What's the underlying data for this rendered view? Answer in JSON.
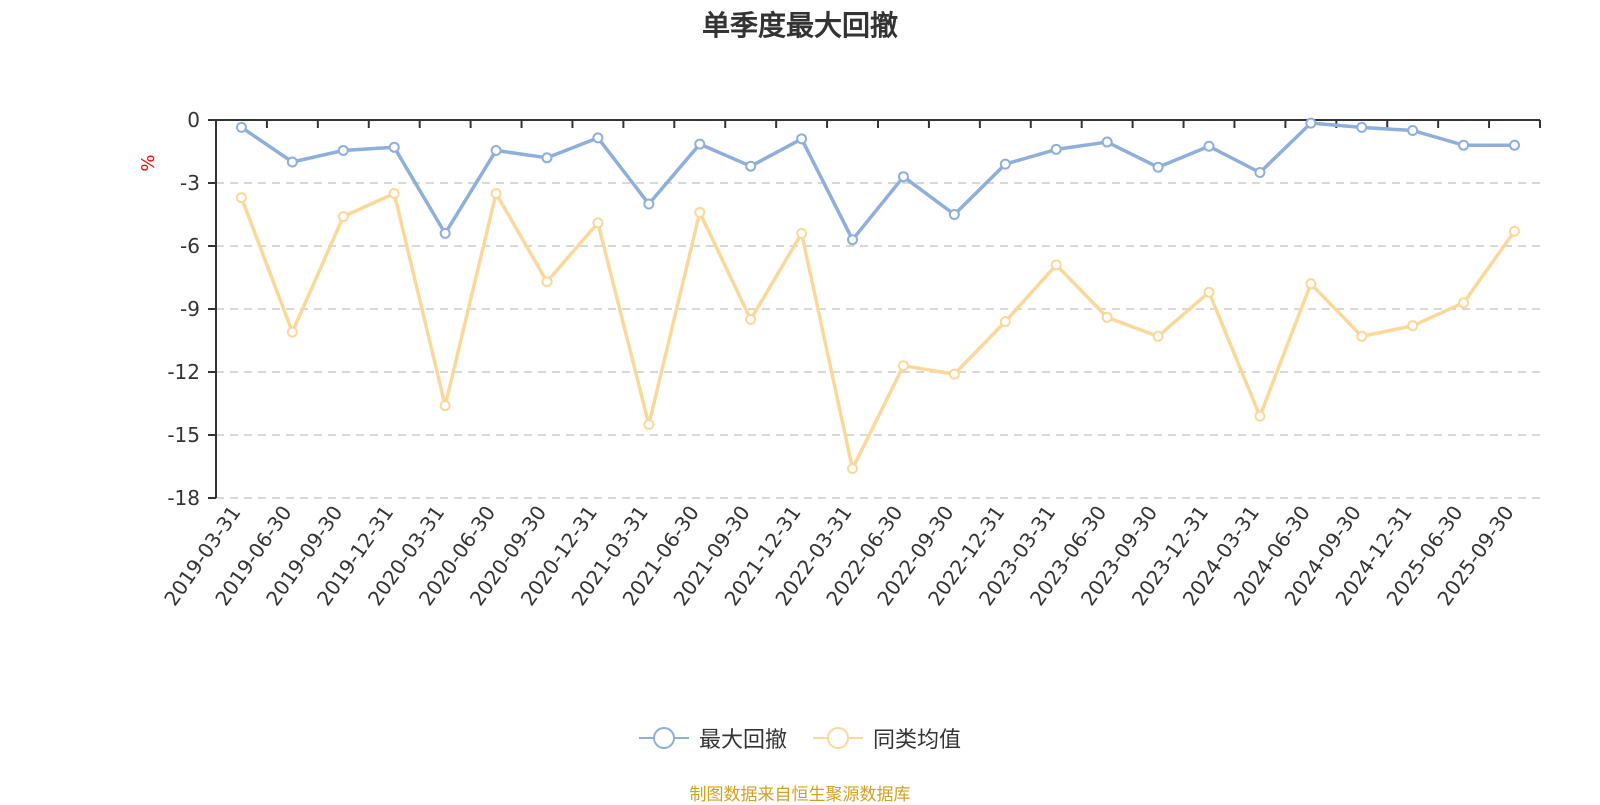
{
  "chart_data": {
    "type": "line",
    "title": "单季度最大回撤",
    "ylabel": "%",
    "ylim": [
      -18,
      0
    ],
    "yticks": [
      0,
      -3,
      -6,
      -9,
      -12,
      -15,
      -18
    ],
    "grid": true,
    "legend_position": "bottom",
    "categories": [
      "2019-03-31",
      "2019-06-30",
      "2019-09-30",
      "2019-12-31",
      "2020-03-31",
      "2020-06-30",
      "2020-09-30",
      "2020-12-31",
      "2021-03-31",
      "2021-06-30",
      "2021-09-30",
      "2021-12-31",
      "2022-03-31",
      "2022-06-30",
      "2022-09-30",
      "2022-12-31",
      "2023-03-31",
      "2023-06-30",
      "2023-09-30",
      "2023-12-31",
      "2024-03-31",
      "2024-06-30",
      "2024-09-30",
      "2024-12-31",
      "2025-06-30",
      "2025-09-30"
    ],
    "series": [
      {
        "name": "最大回撤",
        "color": "#8eaedb",
        "values": [
          -0.35,
          -2.0,
          -1.45,
          -1.3,
          -5.4,
          -1.45,
          -1.8,
          -0.85,
          -4.0,
          -1.15,
          -2.2,
          -0.9,
          -5.7,
          -2.7,
          -4.5,
          -2.1,
          -1.4,
          -1.05,
          -2.25,
          -1.25,
          -2.5,
          -0.15,
          -0.35,
          -0.5,
          -1.2,
          -1.2
        ]
      },
      {
        "name": "同类均值",
        "color": "#fad89a",
        "values": [
          -3.7,
          -10.1,
          -4.6,
          -3.5,
          -13.6,
          -3.5,
          -7.7,
          -4.9,
          -14.5,
          -4.4,
          -9.5,
          -5.4,
          -16.6,
          -11.7,
          -12.1,
          -9.6,
          -6.9,
          -9.4,
          -10.3,
          -8.2,
          -14.1,
          -7.8,
          -10.3,
          -9.8,
          -8.7,
          -5.3
        ]
      }
    ]
  },
  "source_note": "制图数据来自恒生聚源数据库"
}
